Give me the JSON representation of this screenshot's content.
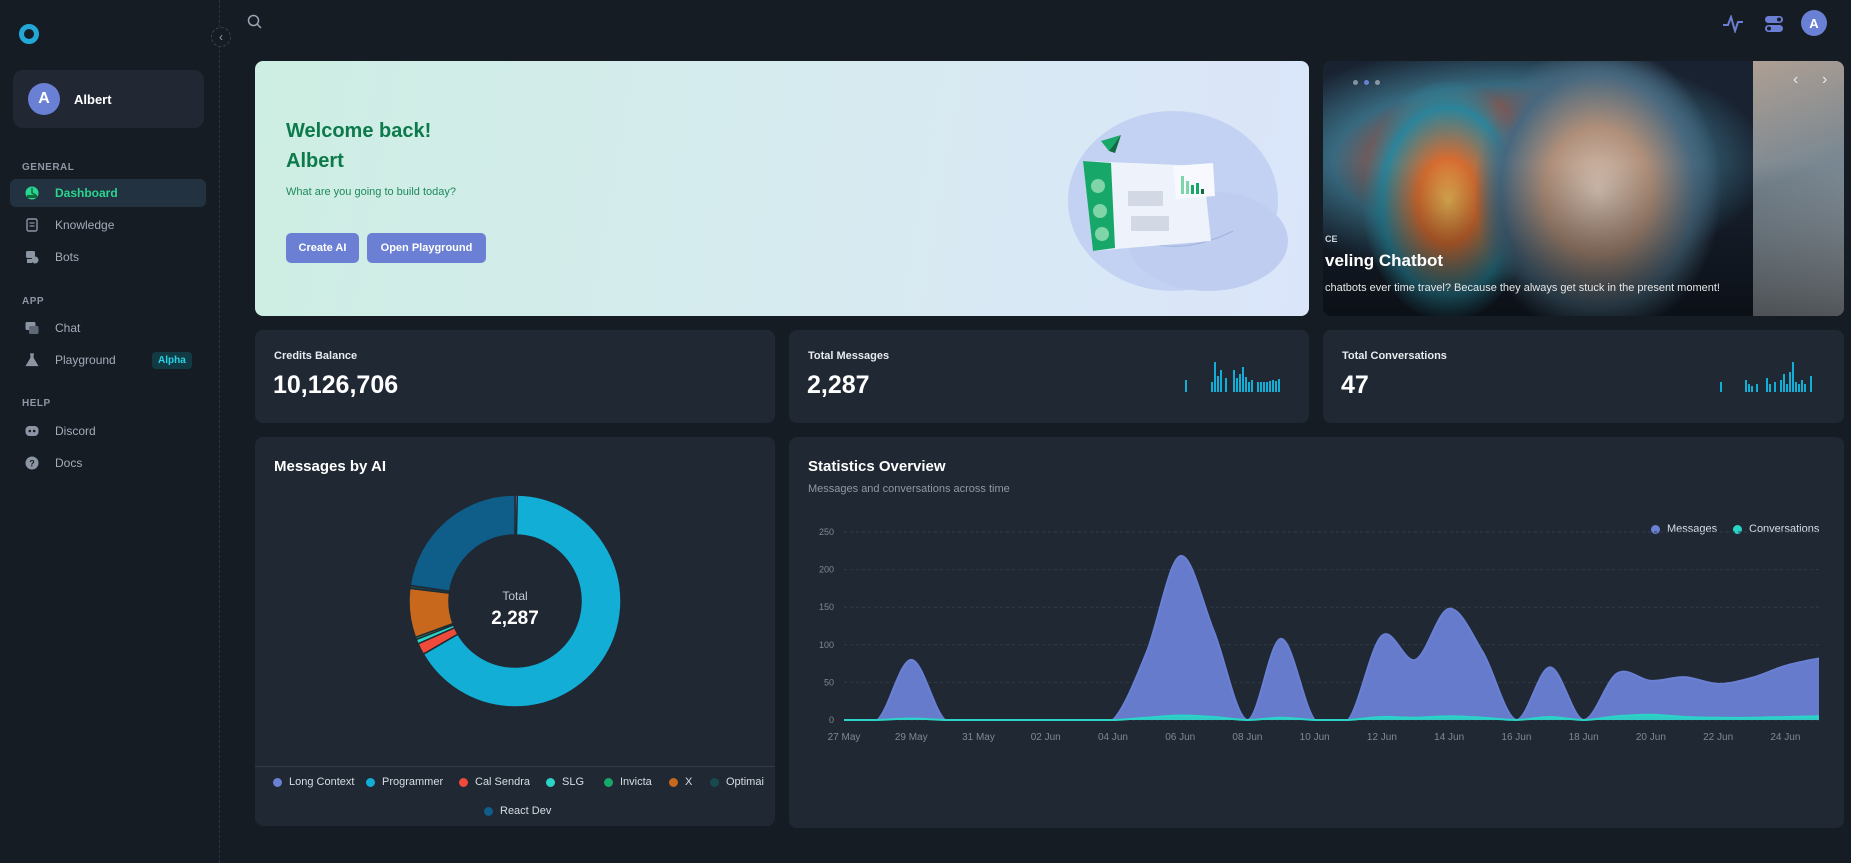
{
  "user": {
    "name": "Albert",
    "initial": "A"
  },
  "sidebar": {
    "sections": [
      {
        "title": "GENERAL",
        "items": [
          {
            "label": "Dashboard",
            "icon": "dashboard-icon",
            "active": true
          },
          {
            "label": "Knowledge",
            "icon": "book-icon"
          },
          {
            "label": "Bots",
            "icon": "bot-icon"
          }
        ]
      },
      {
        "title": "APP",
        "items": [
          {
            "label": "Chat",
            "icon": "chat-icon"
          },
          {
            "label": "Playground",
            "icon": "flask-icon",
            "badge": "Alpha"
          }
        ]
      },
      {
        "title": "HELP",
        "items": [
          {
            "label": "Discord",
            "icon": "discord-icon"
          },
          {
            "label": "Docs",
            "icon": "help-icon"
          }
        ]
      }
    ]
  },
  "topbar": {
    "avatar_initial": "A"
  },
  "welcome": {
    "line1": "Welcome back!",
    "line2": "Albert",
    "subtitle": "What are you going to build today?",
    "btn_create": "Create AI",
    "btn_playground": "Open Playground"
  },
  "carousel": {
    "tag": "CE",
    "title": "veling Chatbot",
    "caption": "chatbots ever time travel? Because they always get stuck in the present moment!",
    "prev": "‹",
    "next": "›"
  },
  "stats": {
    "credits": {
      "label": "Credits Balance",
      "value": "10,126,706"
    },
    "messages": {
      "label": "Total Messages",
      "value": "2,287"
    },
    "conversations": {
      "label": "Total Conversations",
      "value": "47"
    }
  },
  "messages_by_ai": {
    "title": "Messages by AI",
    "center_label": "Total",
    "center_value": "2,287"
  },
  "statistics": {
    "title": "Statistics Overview",
    "subtitle": "Messages and conversations across time"
  },
  "colors": {
    "accent": "#6b80d4",
    "green": "#2bd48f",
    "messages": "#6a80d4",
    "conversations": "#2ad4c6"
  },
  "chart_data": [
    {
      "type": "pie",
      "title": "Messages by AI",
      "labels": [
        "Long Context",
        "Programmer",
        "Cal Sendra",
        "SLG",
        "Invicta",
        "X",
        "Optimai",
        "React Dev"
      ],
      "colors": [
        "#6a80d4",
        "#13aed6",
        "#f04a3a",
        "#2ad4c6",
        "#17a869",
        "#c7681d",
        "#174a4e",
        "#0f5e8a"
      ],
      "values": [
        8,
        1516,
        40,
        16,
        8,
        171,
        10,
        518
      ]
    },
    {
      "type": "area",
      "title": "Statistics Overview",
      "x": [
        "27 May",
        "28 May",
        "29 May",
        "30 May",
        "31 May",
        "01 Jun",
        "02 Jun",
        "03 Jun",
        "04 Jun",
        "05 Jun",
        "06 Jun",
        "07 Jun",
        "08 Jun",
        "09 Jun",
        "10 Jun",
        "11 Jun",
        "12 Jun",
        "13 Jun",
        "14 Jun",
        "15 Jun",
        "16 Jun",
        "17 Jun",
        "18 Jun",
        "19 Jun",
        "20 Jun",
        "21 Jun",
        "22 Jun",
        "23 Jun",
        "24 Jun",
        "25 Jun"
      ],
      "xticks": [
        "27 May",
        "29 May",
        "31 May",
        "02 Jun",
        "04 Jun",
        "06 Jun",
        "08 Jun",
        "10 Jun",
        "12 Jun",
        "14 Jun",
        "16 Jun",
        "18 Jun",
        "20 Jun",
        "22 Jun",
        "24 Jun"
      ],
      "ylim": [
        0,
        250
      ],
      "yticks": [
        0,
        50,
        100,
        150,
        200,
        250
      ],
      "series": [
        {
          "name": "Messages",
          "values": [
            0,
            0,
            80,
            0,
            0,
            0,
            0,
            0,
            0,
            90,
            218,
            118,
            0,
            108,
            0,
            0,
            112,
            80,
            148,
            90,
            0,
            70,
            0,
            62,
            52,
            57,
            48,
            56,
            72,
            82
          ]
        },
        {
          "name": "Conversations",
          "values": [
            0,
            0,
            2,
            0,
            0,
            0,
            0,
            0,
            0,
            3,
            6,
            4,
            0,
            3,
            0,
            0,
            4,
            3,
            5,
            3,
            0,
            4,
            0,
            5,
            7,
            4,
            3,
            3,
            4,
            5
          ]
        }
      ],
      "legend": "top-right"
    }
  ]
}
